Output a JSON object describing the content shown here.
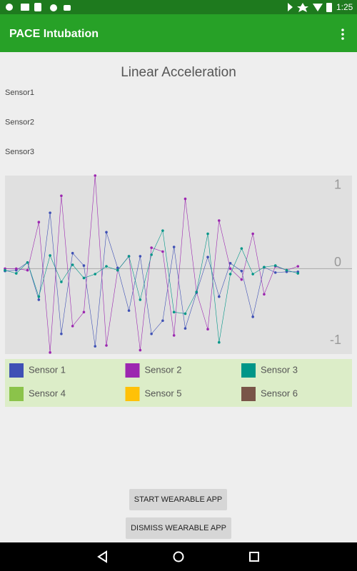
{
  "status_bar": {
    "time": "1:25"
  },
  "app_bar": {
    "title": "PACE Intubation"
  },
  "heading": "Linear Acceleration",
  "sensor_labels": [
    "Sensor1",
    "Sensor2",
    "Sensor3"
  ],
  "chart_data": {
    "type": "line",
    "x": [
      0,
      1,
      2,
      3,
      4,
      5,
      6,
      7,
      8,
      9,
      10,
      11,
      12,
      13,
      14,
      15,
      16,
      17,
      18,
      19,
      20,
      21,
      22,
      23,
      24,
      25,
      26
    ],
    "xlim": [
      0,
      30.8
    ],
    "ylim": [
      -1.1,
      1.2
    ],
    "yticks": [
      -1,
      0,
      1
    ],
    "series": [
      {
        "name": "Sensor 1",
        "color": "#3f51b5",
        "values": [
          -0.03,
          -0.02,
          0.08,
          -0.4,
          0.72,
          -0.84,
          0.2,
          0.04,
          -1.0,
          0.47,
          0.01,
          -0.54,
          0.16,
          -0.84,
          -0.67,
          0.28,
          -0.77,
          -0.31,
          0.15,
          -0.36,
          0.07,
          -0.03,
          -0.62,
          0.02,
          -0.05,
          -0.04,
          -0.04
        ]
      },
      {
        "name": "Sensor 2",
        "color": "#9c27b0",
        "values": [
          0.0,
          0.0,
          -0.02,
          0.6,
          -1.08,
          0.94,
          -0.74,
          -0.56,
          1.2,
          -0.99,
          -0.02,
          0.16,
          -1.05,
          0.27,
          0.22,
          -0.86,
          0.9,
          -0.3,
          -0.78,
          0.62,
          0.0,
          -0.14,
          0.45,
          -0.33,
          0.03,
          -0.02,
          0.03
        ]
      },
      {
        "name": "Sensor 3",
        "color": "#009688",
        "values": [
          -0.02,
          -0.06,
          0.08,
          -0.36,
          0.17,
          -0.17,
          0.05,
          -0.12,
          -0.07,
          0.03,
          -0.02,
          0.16,
          -0.4,
          0.18,
          0.49,
          -0.56,
          -0.58,
          -0.3,
          0.45,
          -0.95,
          -0.07,
          0.26,
          -0.07,
          0.02,
          0.04,
          -0.02,
          -0.06
        ]
      },
      {
        "name": "Sensor 4",
        "color": "#8bc34a",
        "values": [
          null,
          null,
          null,
          null,
          null,
          null,
          null,
          null,
          null,
          null,
          null,
          null,
          null,
          null,
          null,
          null,
          null,
          null,
          null,
          null,
          null,
          null,
          null,
          null,
          null,
          null,
          null
        ]
      },
      {
        "name": "Sensor 5",
        "color": "#ffc107",
        "values": [
          null,
          null,
          null,
          null,
          null,
          null,
          null,
          null,
          null,
          null,
          null,
          null,
          null,
          null,
          null,
          null,
          null,
          null,
          null,
          null,
          null,
          null,
          null,
          null,
          null,
          null,
          null
        ]
      },
      {
        "name": "Sensor 6",
        "color": "#795548",
        "values": [
          null,
          null,
          null,
          null,
          null,
          null,
          null,
          null,
          null,
          null,
          null,
          null,
          null,
          null,
          null,
          null,
          null,
          null,
          null,
          null,
          null,
          null,
          null,
          null,
          null,
          null,
          null
        ]
      }
    ]
  },
  "buttons": [
    "START WEARABLE APP",
    "DISMISS WEARABLE APP"
  ]
}
